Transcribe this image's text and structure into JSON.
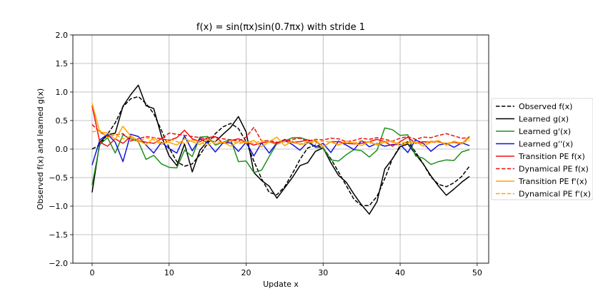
{
  "chart_data": {
    "type": "line",
    "title": "f(x) = sin(πx)sin(0.7πx) with stride 1",
    "xlabel": "Update x",
    "ylabel": "Observed f(x) and learned g(x)",
    "xlim": [
      -2.5,
      51.5
    ],
    "ylim": [
      -2.0,
      2.0
    ],
    "xticks": [
      "0",
      "10",
      "20",
      "30",
      "40",
      "50"
    ],
    "yticks": [
      "−2.0",
      "−1.5",
      "−1.0",
      "−0.5",
      "0.0",
      "0.5",
      "1.0",
      "1.5",
      "2.0"
    ],
    "grid": true,
    "legend_position": "right, outside plot",
    "x": [
      0,
      1,
      2,
      3,
      4,
      5,
      6,
      7,
      8,
      9,
      10,
      11,
      12,
      13,
      14,
      15,
      16,
      17,
      18,
      19,
      20,
      21,
      22,
      23,
      24,
      25,
      26,
      27,
      28,
      29,
      30,
      31,
      32,
      33,
      34,
      35,
      36,
      37,
      38,
      39,
      40,
      41,
      42,
      43,
      44,
      45,
      46,
      47,
      48,
      49
    ],
    "series": [
      {
        "name": "Observed f(x)",
        "color": "#000000",
        "dash": "dashed",
        "values": [
          0.0,
          0.07,
          0.26,
          0.46,
          0.74,
          0.88,
          0.92,
          0.8,
          0.62,
          0.33,
          0.02,
          -0.22,
          -0.3,
          -0.26,
          -0.1,
          0.1,
          0.27,
          0.39,
          0.45,
          0.36,
          0.13,
          -0.21,
          -0.52,
          -0.76,
          -0.8,
          -0.66,
          -0.43,
          -0.18,
          0.02,
          0.07,
          0.02,
          -0.17,
          -0.4,
          -0.64,
          -0.88,
          -0.99,
          -0.99,
          -0.83,
          -0.52,
          -0.17,
          0.06,
          0.13,
          -0.05,
          -0.26,
          -0.49,
          -0.62,
          -0.66,
          -0.59,
          -0.48,
          -0.3
        ]
      },
      {
        "name": "Learned g(x)",
        "color": "#000000",
        "dash": "solid",
        "values": [
          -0.76,
          0.12,
          0.25,
          0.28,
          0.75,
          0.95,
          1.12,
          0.76,
          0.71,
          0.23,
          -0.12,
          -0.29,
          0.09,
          -0.4,
          -0.02,
          0.14,
          0.13,
          0.26,
          0.38,
          0.57,
          0.3,
          -0.41,
          -0.55,
          -0.65,
          -0.86,
          -0.68,
          -0.5,
          -0.29,
          -0.24,
          -0.04,
          0.02,
          -0.24,
          -0.46,
          -0.58,
          -0.79,
          -0.98,
          -1.14,
          -0.92,
          -0.35,
          -0.17,
          0.04,
          0.09,
          -0.09,
          -0.26,
          -0.47,
          -0.65,
          -0.81,
          -0.7,
          -0.58,
          -0.48
        ]
      },
      {
        "name": "Learned g'(x)",
        "color": "#1f8f1f",
        "dash": "solid",
        "values": [
          -0.63,
          0.08,
          0.2,
          -0.07,
          0.25,
          0.18,
          0.13,
          -0.18,
          -0.11,
          -0.26,
          -0.32,
          -0.33,
          -0.02,
          -0.13,
          0.21,
          0.22,
          0.07,
          0.12,
          0.17,
          -0.22,
          -0.21,
          -0.41,
          -0.37,
          -0.13,
          0.1,
          0.14,
          0.2,
          0.2,
          0.16,
          0.03,
          0.02,
          -0.19,
          -0.21,
          -0.1,
          -0.01,
          -0.03,
          -0.14,
          -0.02,
          0.37,
          0.34,
          0.24,
          0.25,
          -0.12,
          -0.16,
          -0.27,
          -0.22,
          -0.19,
          -0.2,
          -0.05,
          -0.01
        ]
      },
      {
        "name": "Learned g''(x)",
        "color": "#1414d8",
        "dash": "solid",
        "values": [
          -0.28,
          0.16,
          0.26,
          0.12,
          -0.22,
          0.26,
          0.22,
          0.07,
          -0.07,
          0.12,
          0.01,
          -0.07,
          0.23,
          -0.03,
          0.18,
          0.11,
          -0.05,
          0.11,
          0.11,
          -0.04,
          0.12,
          -0.12,
          0.11,
          -0.07,
          0.11,
          0.15,
          0.08,
          -0.02,
          0.12,
          0.04,
          0.1,
          -0.06,
          0.14,
          0.07,
          -0.01,
          0.15,
          0.04,
          0.1,
          0.05,
          0.08,
          0.08,
          -0.06,
          0.16,
          0.1,
          -0.04,
          0.07,
          0.1,
          0.03,
          0.11,
          0.06
        ]
      },
      {
        "name": "Transition PE f(x)",
        "color": "#ee1010",
        "dash": "solid",
        "values": [
          0.76,
          0.12,
          0.05,
          0.18,
          0.1,
          0.22,
          0.15,
          0.12,
          0.1,
          0.18,
          0.15,
          0.2,
          0.33,
          0.18,
          0.13,
          0.2,
          0.22,
          0.1,
          0.15,
          0.18,
          0.12,
          0.07,
          0.11,
          0.13,
          0.1,
          0.17,
          0.12,
          0.13,
          0.16,
          0.14,
          0.04,
          0.13,
          0.13,
          0.1,
          0.09,
          0.1,
          0.13,
          0.17,
          0.13,
          0.05,
          0.13,
          0.21,
          0.1,
          0.13,
          0.12,
          0.13,
          0.09,
          0.12,
          0.09,
          0.22
        ]
      },
      {
        "name": "Dynamical PE f(x)",
        "color": "#ee1010",
        "dash": "dashed",
        "values": [
          0.43,
          0.3,
          0.22,
          0.25,
          0.27,
          0.14,
          0.18,
          0.22,
          0.2,
          0.18,
          0.28,
          0.26,
          0.24,
          0.22,
          0.2,
          0.17,
          0.21,
          0.18,
          0.16,
          0.14,
          0.21,
          0.38,
          0.14,
          0.15,
          0.12,
          0.13,
          0.17,
          0.19,
          0.14,
          0.17,
          0.16,
          0.19,
          0.18,
          0.13,
          0.15,
          0.19,
          0.17,
          0.2,
          0.17,
          0.14,
          0.19,
          0.22,
          0.17,
          0.21,
          0.2,
          0.24,
          0.27,
          0.23,
          0.19,
          0.2
        ]
      },
      {
        "name": "Transition PE f'(x)",
        "color": "#ffa500",
        "dash": "solid",
        "values": [
          0.8,
          0.3,
          0.28,
          0.17,
          0.4,
          0.23,
          0.15,
          0.08,
          0.2,
          0.1,
          0.12,
          0.07,
          0.18,
          0.13,
          0.08,
          0.17,
          0.09,
          0.12,
          0.05,
          0.13,
          0.11,
          0.15,
          0.04,
          0.13,
          0.21,
          0.06,
          0.14,
          0.08,
          0.1,
          0.16,
          0.04,
          0.13,
          0.07,
          0.14,
          0.11,
          0.06,
          0.13,
          0.07,
          0.12,
          0.14,
          0.06,
          0.11,
          0.13,
          0.05,
          0.12,
          0.15,
          0.07,
          0.14,
          0.09,
          0.2
        ]
      },
      {
        "name": "Dynamical PE f'(x)",
        "color": "#ffa500",
        "dash": "dashed",
        "values": [
          0.3,
          0.33,
          0.2,
          0.26,
          0.18,
          0.22,
          0.12,
          0.2,
          0.16,
          0.08,
          0.18,
          0.13,
          0.1,
          0.16,
          0.12,
          0.07,
          0.14,
          0.11,
          0.15,
          0.09,
          0.13,
          0.1,
          0.15,
          0.12,
          0.08,
          0.14,
          0.11,
          0.09,
          0.13,
          0.1,
          0.14,
          0.12,
          0.08,
          0.13,
          0.1,
          0.15,
          0.11,
          0.09,
          0.14,
          0.12,
          0.1,
          0.13,
          0.11,
          0.09,
          0.14,
          0.12,
          0.1,
          0.13,
          0.11,
          0.15
        ]
      }
    ]
  }
}
